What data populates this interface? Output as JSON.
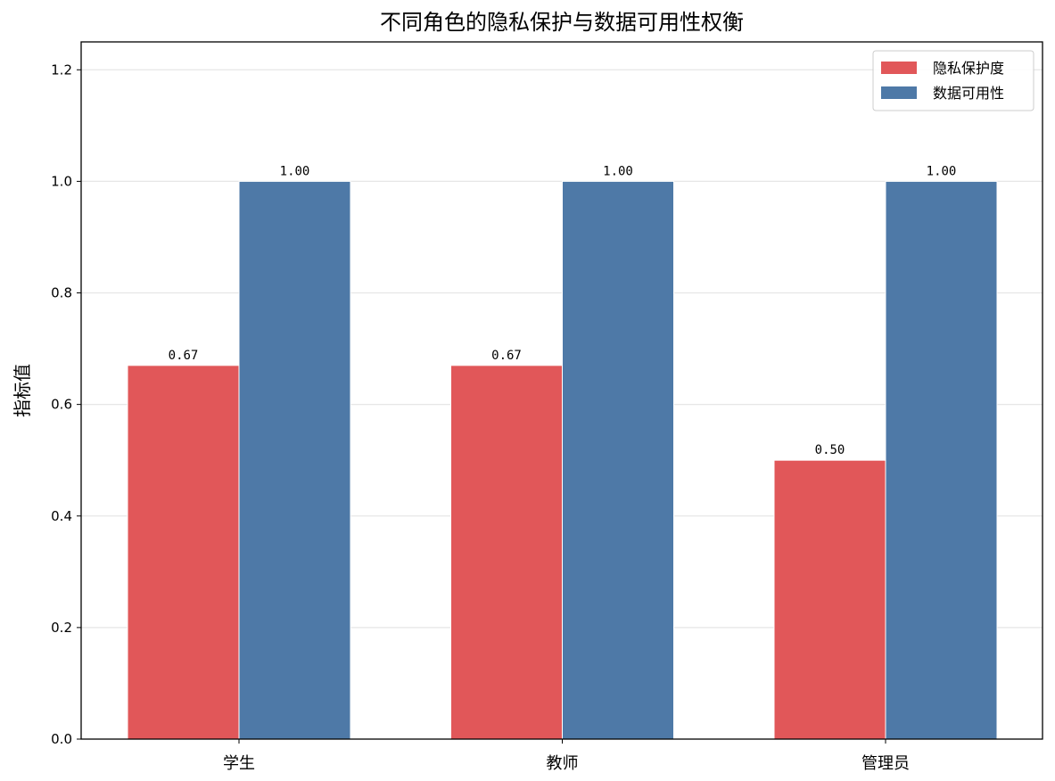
{
  "chart_data": {
    "type": "bar",
    "title": "不同角色的隐私保护与数据可用性权衡",
    "xlabel": "",
    "ylabel": "指标值",
    "categories": [
      "学生",
      "教师",
      "管理员"
    ],
    "series": [
      {
        "name": "隐私保护度",
        "values": [
          0.67,
          0.67,
          0.5
        ],
        "labels": [
          "0.67",
          "0.67",
          "0.50"
        ],
        "color": "#e15759"
      },
      {
        "name": "数据可用性",
        "values": [
          1.0,
          1.0,
          1.0
        ],
        "labels": [
          "1.00",
          "1.00",
          "1.00"
        ],
        "color": "#4e79a7"
      }
    ],
    "ylim": [
      0,
      1.25
    ],
    "yticks": [
      "0.0",
      "0.2",
      "0.4",
      "0.6",
      "0.8",
      "1.0",
      "1.2"
    ],
    "grid": "y",
    "legend_position": "top-right"
  }
}
